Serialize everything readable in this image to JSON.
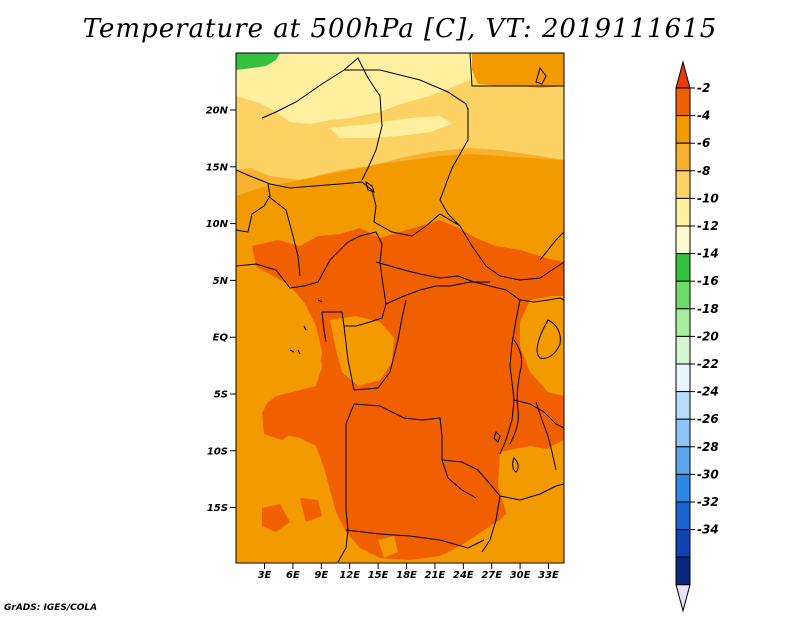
{
  "title": "Temperature at 500hPa [C], VT: 2019111615",
  "credit": "GrADS: IGES/COLA",
  "map": {
    "lat_axis": [
      "20N",
      "15N",
      "10N",
      "5N",
      "EQ",
      "5S",
      "10S",
      "15S"
    ],
    "lon_axis": [
      "3E",
      "6E",
      "9E",
      "12E",
      "15E",
      "18E",
      "21E",
      "24E",
      "27E",
      "30E",
      "33E"
    ]
  },
  "colorbar": {
    "labels": [
      "-2",
      "-4",
      "-6",
      "-8",
      "-10",
      "-12",
      "-14",
      "-16",
      "-18",
      "-20",
      "-22",
      "-24",
      "-26",
      "-28",
      "-30",
      "-32",
      "-34"
    ],
    "colors": [
      "#f06000",
      "#f39a00",
      "#f7b12f",
      "#fcd264",
      "#fff0a0",
      "#fffad0",
      "#37c040",
      "#6ddc68",
      "#a6eda0",
      "#d3f7d0",
      "#e6f6ff",
      "#b6dcfb",
      "#8ec3f6",
      "#5da4ee",
      "#2e86e6",
      "#1c64d1",
      "#0f44b0",
      "#0a2880"
    ],
    "over_color": "#e83a10",
    "under_color": "#e2e2f8"
  },
  "fields": {
    "c_m2": "#f06000",
    "c_m4": "#f39a00",
    "c_m6": "#f7b12f",
    "c_m8": "#fcd264",
    "c_m10": "#fff0a0",
    "c_m12": "#37c040"
  }
}
